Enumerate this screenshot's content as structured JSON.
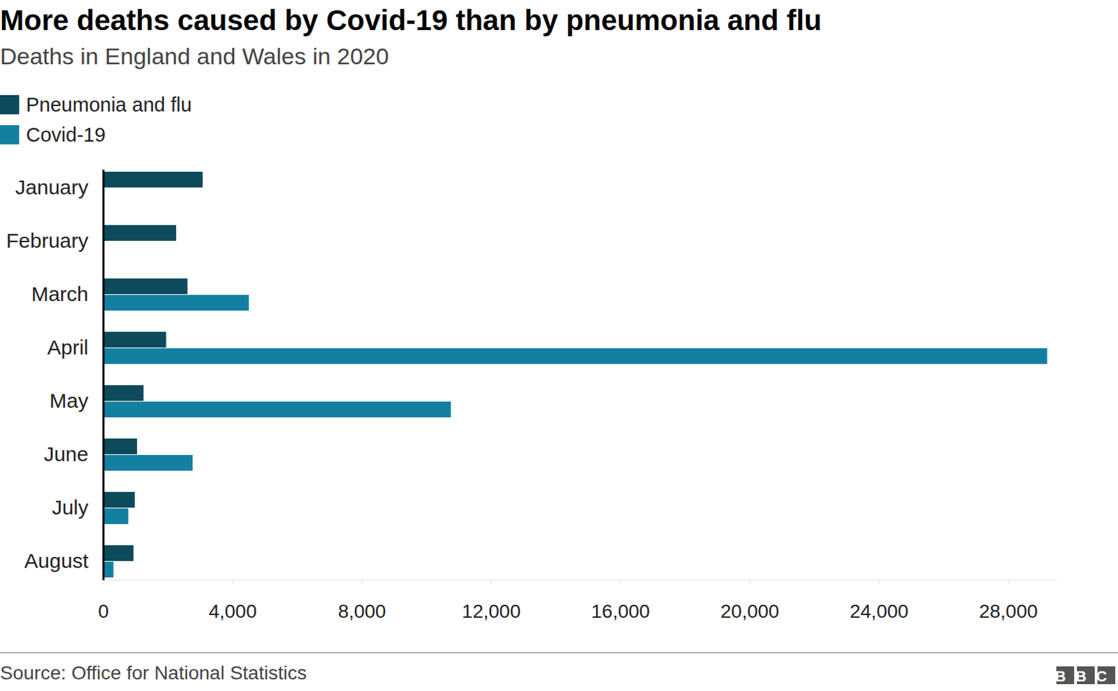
{
  "chart_data": {
    "type": "bar",
    "orientation": "horizontal",
    "title": "More deaths caused by Covid-19 than by pneumonia and flu",
    "subtitle": "Deaths in England and Wales in 2020",
    "source": "Source: Office for National Statistics",
    "logo": "BBC",
    "categories": [
      "January",
      "February",
      "March",
      "April",
      "May",
      "June",
      "July",
      "August"
    ],
    "series": [
      {
        "name": "Pneumonia and flu",
        "color": "#0d4a5b",
        "values": [
          3070,
          2250,
          2600,
          1940,
          1240,
          1040,
          970,
          930
        ]
      },
      {
        "name": "Covid-19",
        "color": "#1380a1",
        "values": [
          null,
          null,
          4500,
          29200,
          10750,
          2760,
          770,
          310
        ]
      }
    ],
    "xlim": [
      0,
      29500
    ],
    "xticks": [
      0,
      {
        "value": 4000,
        "label": "4,000"
      },
      {
        "value": 8000,
        "label": "8,000"
      },
      {
        "value": 12000,
        "label": "12,000"
      },
      {
        "value": 16000,
        "label": "16,000"
      },
      {
        "value": 20000,
        "label": "20,000"
      },
      {
        "value": 24000,
        "label": "24,000"
      },
      {
        "value": 28000,
        "label": "28,000"
      }
    ],
    "legend": "top-left",
    "grid": false
  }
}
